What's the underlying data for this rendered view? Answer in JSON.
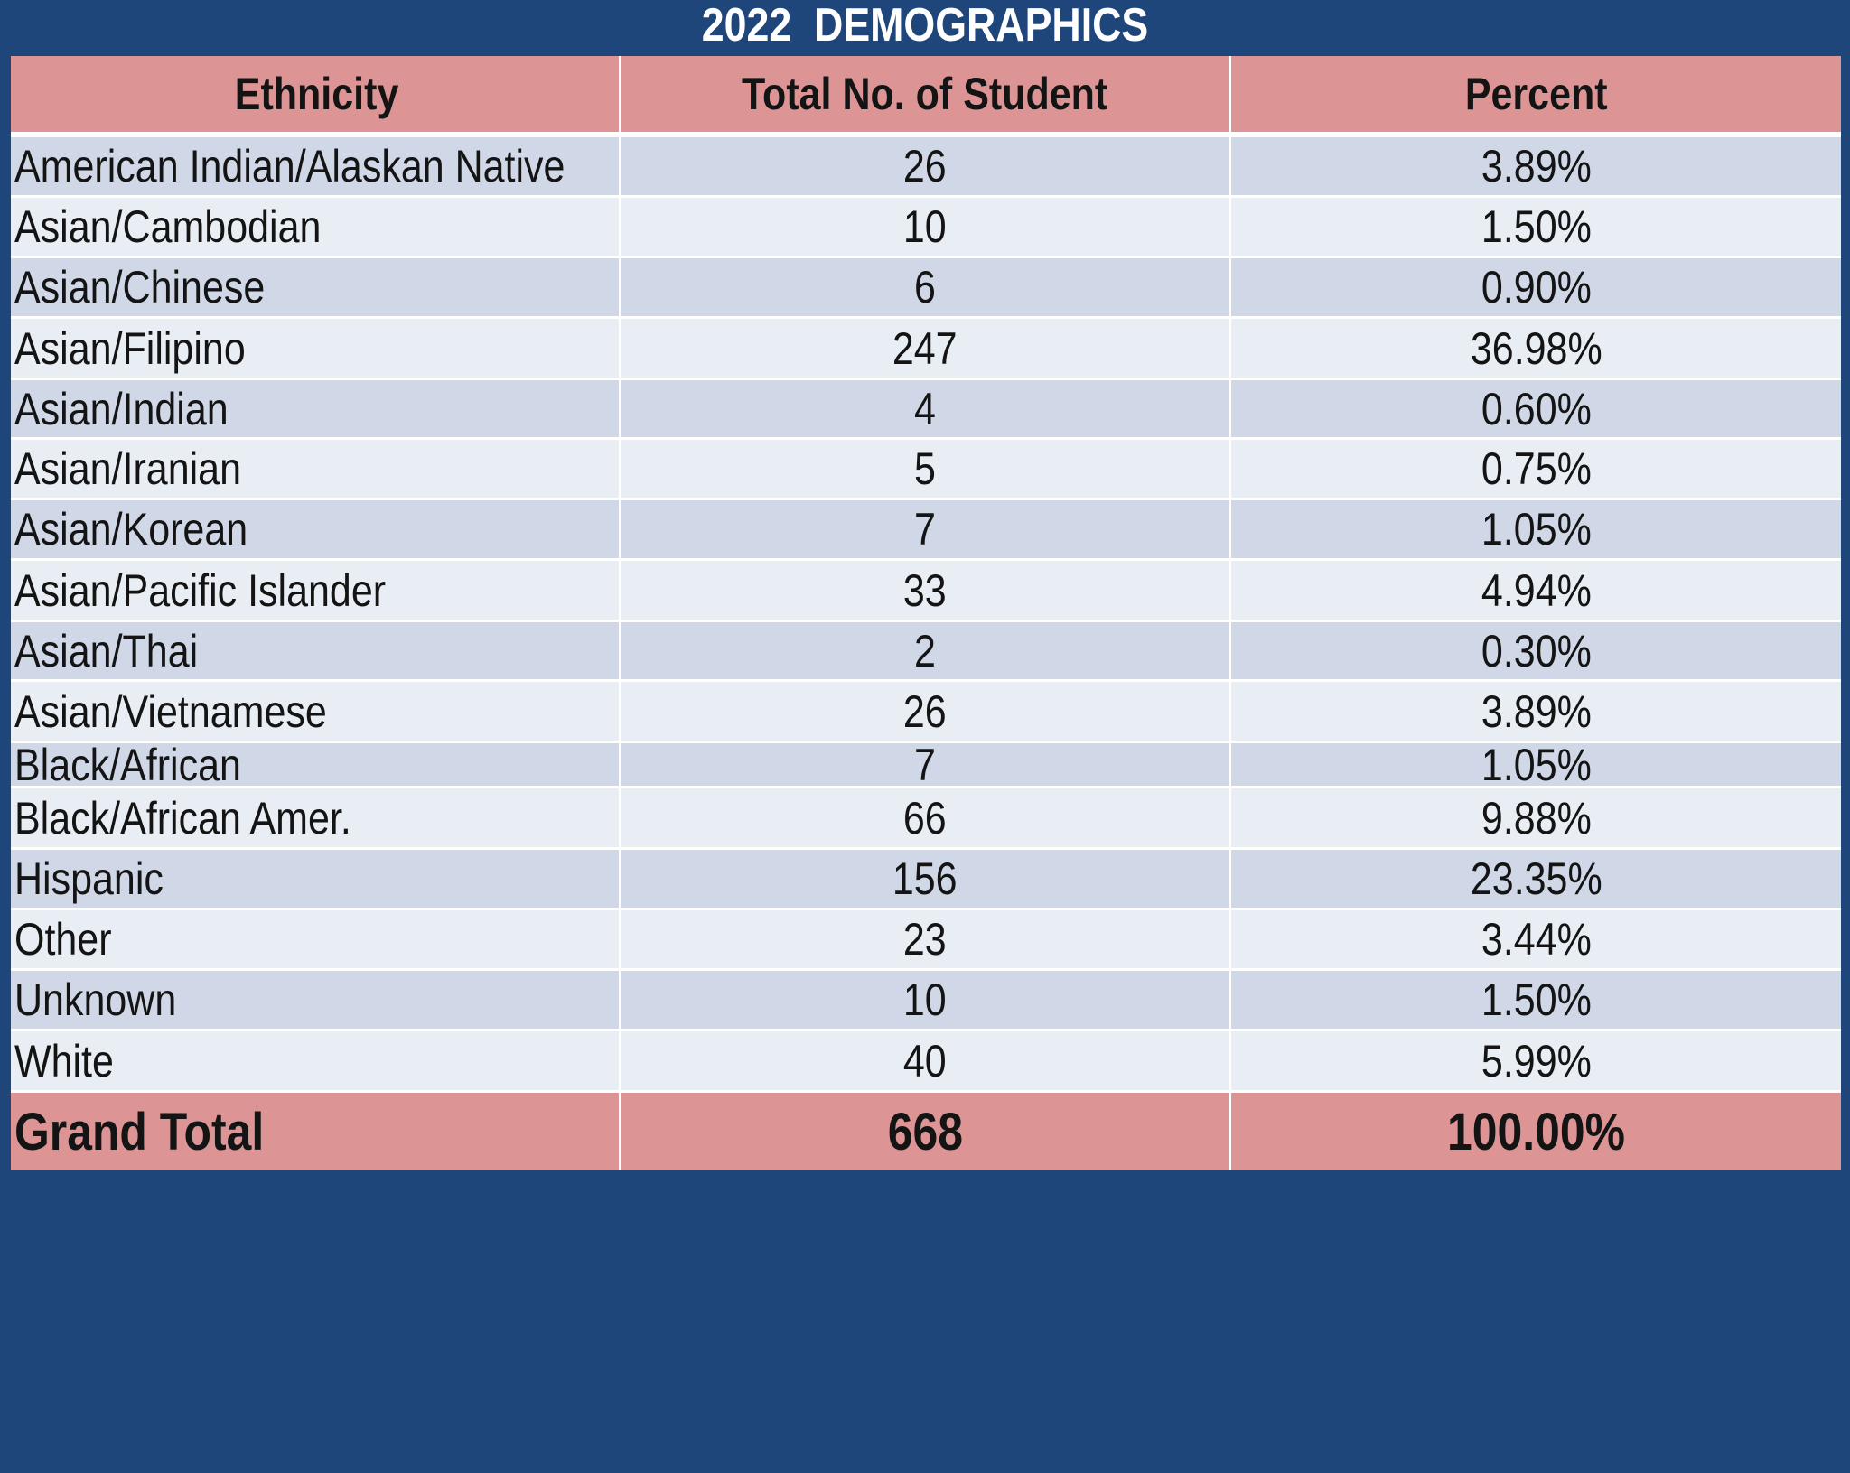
{
  "title": "2022  DEMOGRAPHICS",
  "colors": {
    "background": "#1f467a",
    "header_fill": "#dc9494",
    "row_band_dark": "#d0d8e8",
    "row_band_light": "#e9edf4"
  },
  "chart_data": {
    "type": "table",
    "title": "2022  DEMOGRAPHICS",
    "columns": [
      "Ethnicity",
      "Total No. of Student",
      "Percent"
    ],
    "rows": [
      [
        "American Indian/Alaskan Native",
        "26",
        "3.89%"
      ],
      [
        "Asian/Cambodian",
        "10",
        "1.50%"
      ],
      [
        "Asian/Chinese",
        "6",
        "0.90%"
      ],
      [
        "Asian/Filipino",
        "247",
        "36.98%"
      ],
      [
        "Asian/Indian",
        "4",
        "0.60%"
      ],
      [
        "Asian/Iranian",
        "5",
        "0.75%"
      ],
      [
        "Asian/Korean",
        "7",
        "1.05%"
      ],
      [
        "Asian/Pacific Islander",
        "33",
        "4.94%"
      ],
      [
        "Asian/Thai",
        "2",
        "0.30%"
      ],
      [
        "Asian/Vietnamese",
        "26",
        "3.89%"
      ],
      [
        "Black/African",
        "7",
        "1.05%"
      ],
      [
        "Black/African Amer.",
        "66",
        "9.88%"
      ],
      [
        "Hispanic",
        "156",
        "23.35%"
      ],
      [
        "Other",
        "23",
        "3.44%"
      ],
      [
        "Unknown",
        "10",
        "1.50%"
      ],
      [
        "White",
        "40",
        "5.99%"
      ]
    ],
    "total": [
      "Grand Total",
      "668",
      "100.00%"
    ]
  }
}
